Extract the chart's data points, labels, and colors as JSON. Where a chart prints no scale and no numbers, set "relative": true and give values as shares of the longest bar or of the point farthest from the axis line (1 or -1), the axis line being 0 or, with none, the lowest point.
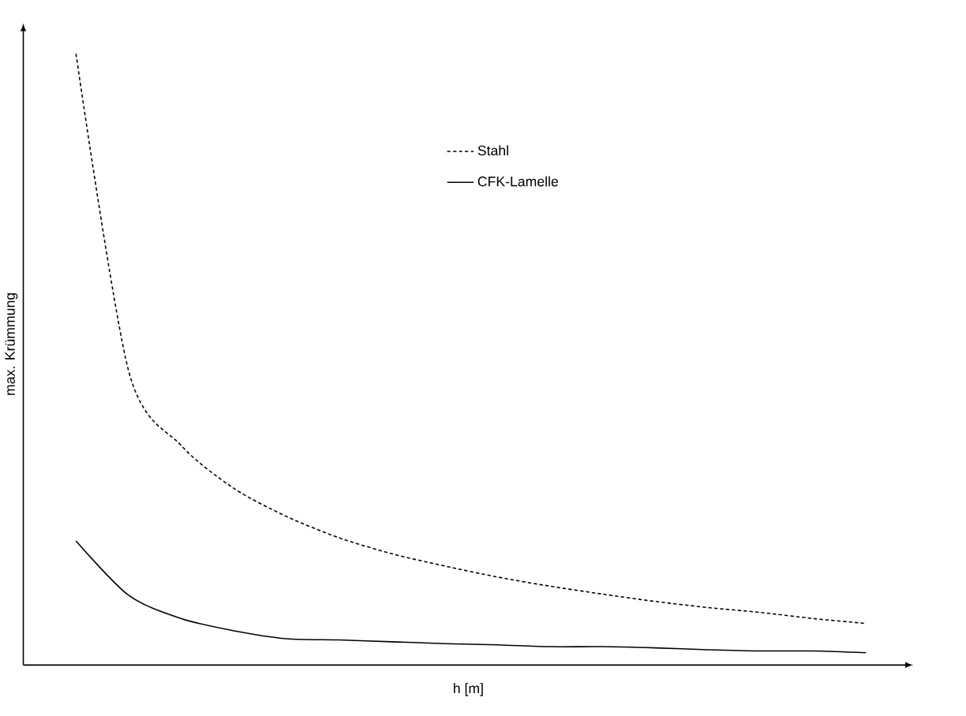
{
  "chart_data": {
    "type": "line",
    "relative": true,
    "xlabel": "h [m]",
    "ylabel": "max. Krümmung",
    "legend": "top right",
    "marker": "none",
    "categories": [
      null,
      null,
      null,
      null,
      null,
      null,
      null,
      null,
      null,
      null,
      null,
      null,
      null,
      null,
      null,
      null
    ],
    "series": [
      {
        "name": "Stahl",
        "color": "#000000",
        "line_style": "dashed",
        "values": [
          1.0,
          0.481,
          0.359,
          0.289,
          0.243,
          0.208,
          0.182,
          0.162,
          0.144,
          0.129,
          0.116,
          0.104,
          0.094,
          0.086,
          0.076,
          0.068
        ]
      },
      {
        "name": "CFK-Lamelle",
        "color": "#000000",
        "line_style": "solid",
        "values": [
          0.203,
          0.114,
          0.076,
          0.056,
          0.043,
          0.041,
          0.038,
          0.035,
          0.033,
          0.03,
          0.03,
          0.028,
          0.025,
          0.023,
          0.023,
          0.02
        ]
      }
    ]
  }
}
